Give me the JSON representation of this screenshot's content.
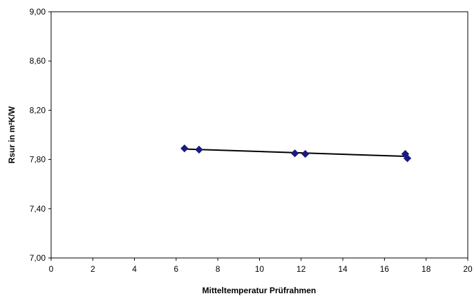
{
  "chart_data": {
    "type": "scatter",
    "title": "",
    "xlabel": "Mitteltemperatur Prüfrahmen",
    "ylabel": "Rsur in m²K/W",
    "xlim": [
      0,
      20
    ],
    "ylim": [
      7.0,
      9.0
    ],
    "x_ticks": [
      "0",
      "2",
      "4",
      "6",
      "8",
      "10",
      "12",
      "14",
      "16",
      "18",
      "20"
    ],
    "y_ticks": [
      "7,00",
      "7,40",
      "7,80",
      "8,20",
      "8,60",
      "9,00"
    ],
    "grid": false,
    "legend": "none",
    "series": [
      {
        "marker": "diamond",
        "color": "#1a1a80",
        "points": [
          {
            "x": 6.4,
            "y": 7.89
          },
          {
            "x": 7.1,
            "y": 7.88
          },
          {
            "x": 11.7,
            "y": 7.85
          },
          {
            "x": 12.2,
            "y": 7.845
          },
          {
            "x": 17.0,
            "y": 7.845
          },
          {
            "x": 17.1,
            "y": 7.81
          }
        ]
      }
    ],
    "trendline": {
      "type": "linear",
      "color": "#000000",
      "points": [
        {
          "x": 6.4,
          "y": 7.885
        },
        {
          "x": 17.1,
          "y": 7.825
        }
      ]
    }
  }
}
